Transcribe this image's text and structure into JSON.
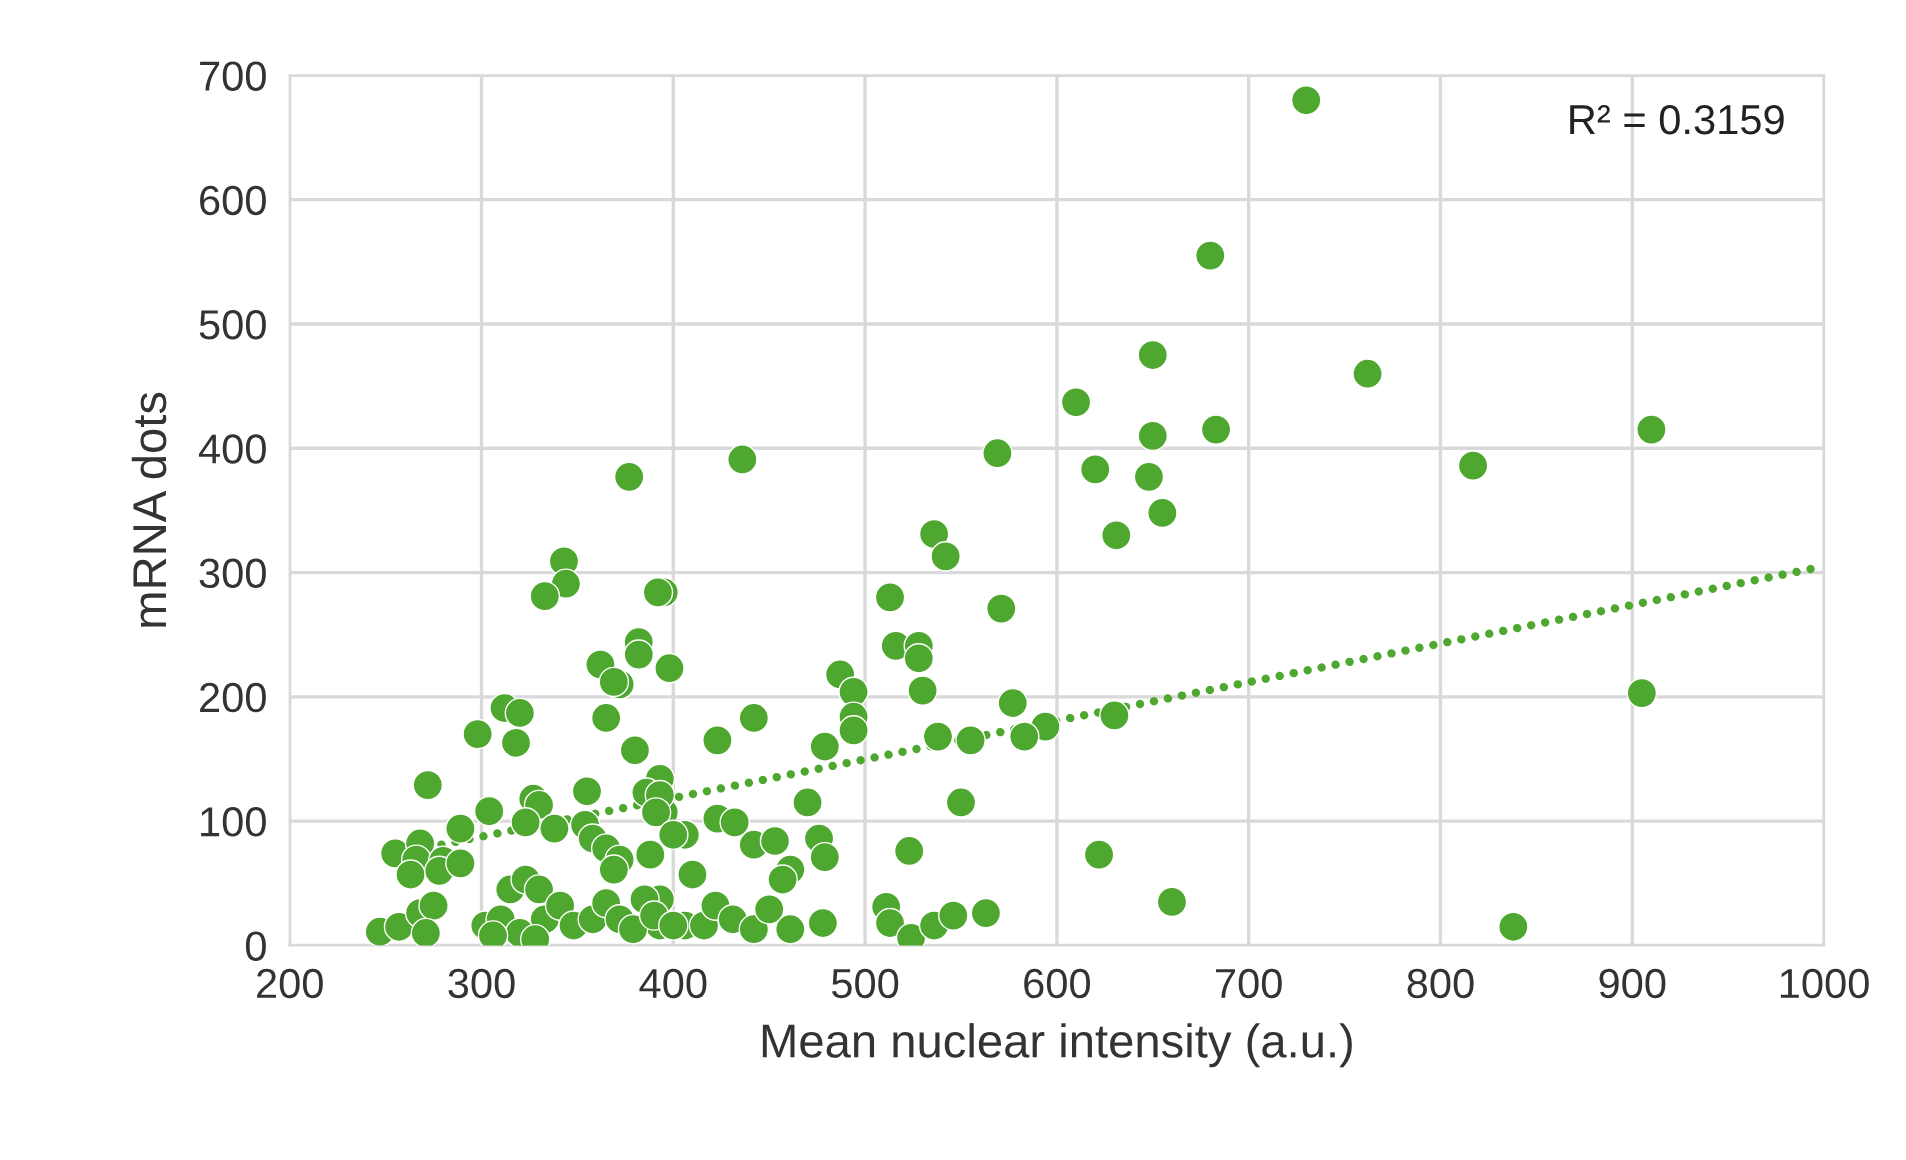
{
  "chart_data": {
    "type": "scatter",
    "xlabel": "Mean nuclear intensity (a.u.)",
    "ylabel": "mRNA dots",
    "xlim": [
      200,
      1000
    ],
    "xticks": [
      200,
      300,
      400,
      500,
      600,
      700,
      800,
      900,
      1000
    ],
    "ylim": [
      0,
      700
    ],
    "yticks": [
      0,
      100,
      200,
      300,
      400,
      500,
      600,
      700
    ],
    "grid": true,
    "marker": "circle",
    "annotations": [
      "R² = 0.3159"
    ],
    "series": [
      {
        "color": "#4ea72e",
        "x": [
          730,
          680,
          650,
          762,
          683,
          650,
          910,
          610,
          620,
          648,
          817,
          569,
          536,
          542,
          631,
          655,
          513,
          571,
          905,
          577,
          594,
          583,
          555,
          538,
          630,
          622,
          660,
          838,
          550,
          530,
          516,
          528,
          528,
          523,
          511,
          513,
          524,
          536,
          546,
          563,
          436,
          487,
          494,
          494,
          494,
          479,
          442,
          423,
          470,
          395,
          398,
          393,
          395,
          423,
          432,
          406,
          410,
          442,
          453,
          461,
          457,
          476,
          479,
          478,
          406,
          416,
          422,
          431,
          442,
          450,
          461,
          393,
          393,
          343,
          344,
          333,
          392,
          382,
          382,
          362,
          372,
          369,
          312,
          320,
          298,
          318,
          365,
          380,
          386,
          393,
          391,
          272,
          355,
          327,
          330,
          304,
          289,
          338,
          323,
          354,
          358,
          365,
          372,
          369,
          388,
          400,
          255,
          268,
          266,
          263,
          280,
          278,
          289,
          247,
          257,
          268,
          275,
          271,
          302,
          310,
          315,
          323,
          330,
          333,
          320,
          306,
          341,
          348,
          358,
          365,
          372,
          379,
          385,
          390,
          400,
          328,
          377
        ],
        "values": [
          680,
          555,
          475,
          460,
          415,
          410,
          415,
          437,
          383,
          377,
          386,
          396,
          331,
          313,
          330,
          348,
          280,
          271,
          203,
          195,
          176,
          168,
          165,
          168,
          185,
          73,
          35,
          15,
          115,
          205,
          241,
          241,
          231,
          76,
          31,
          18,
          6,
          16,
          24,
          26,
          391,
          218,
          204,
          184,
          173,
          160,
          183,
          165,
          115,
          284,
          223,
          134,
          107,
          102,
          99,
          89,
          57,
          81,
          84,
          61,
          53,
          86,
          71,
          18,
          16,
          16,
          32,
          21,
          13,
          29,
          13,
          37,
          16,
          309,
          291,
          281,
          284,
          244,
          234,
          226,
          210,
          212,
          191,
          187,
          170,
          163,
          183,
          157,
          123,
          121,
          107,
          129,
          124,
          118,
          113,
          108,
          94,
          94,
          99,
          97,
          86,
          78,
          69,
          61,
          73,
          89,
          74,
          82,
          69,
          57,
          68,
          60,
          66,
          11,
          15,
          26,
          32,
          10,
          16,
          21,
          45,
          53,
          45,
          21,
          10,
          8,
          32,
          16,
          21,
          34,
          21,
          13,
          37,
          24,
          16,
          5,
          377
        ]
      },
      {
        "type": "line",
        "color": "#4ea72e",
        "line_style": "dotted",
        "marker": "none",
        "x": [
          250,
          1000
        ],
        "values": [
          72,
          305
        ]
      }
    ]
  }
}
